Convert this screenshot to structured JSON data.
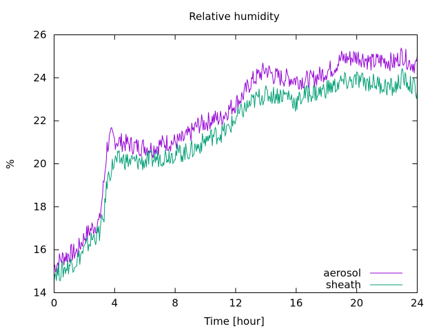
{
  "chart_data": {
    "type": "line",
    "title": "Relative humidity",
    "xlabel": "Time [hour]",
    "ylabel": "%",
    "xlim": [
      0,
      24
    ],
    "ylim": [
      14,
      26
    ],
    "xticks": [
      0,
      4,
      8,
      12,
      16,
      20,
      24
    ],
    "yticks": [
      14,
      16,
      18,
      20,
      22,
      24,
      26
    ],
    "grid": false,
    "legend_position": "bottom-right",
    "series": [
      {
        "name": "aerosol",
        "color": "#9400d3",
        "x": [
          0,
          0.5,
          1,
          1.5,
          2,
          2.5,
          3,
          3.3,
          3.5,
          3.8,
          4,
          4.5,
          5,
          5.5,
          6,
          6.5,
          7,
          7.5,
          8,
          8.5,
          9,
          9.5,
          10,
          10.5,
          11,
          11.5,
          12,
          12.5,
          13,
          13.5,
          14,
          14.5,
          15,
          15.5,
          16,
          16.5,
          17,
          17.5,
          18,
          18.5,
          19,
          19.5,
          20,
          20.5,
          21,
          21.5,
          22,
          22.5,
          23,
          23.5,
          24
        ],
        "y": [
          15.2,
          15.6,
          15.8,
          15.9,
          16.6,
          17.0,
          17.3,
          19.2,
          20.8,
          21.3,
          21.1,
          21.0,
          20.9,
          20.8,
          20.8,
          20.7,
          20.9,
          21.0,
          21.0,
          21.1,
          21.4,
          21.8,
          21.9,
          22.1,
          22.1,
          22.5,
          22.8,
          23.2,
          23.8,
          24.1,
          24.4,
          24.1,
          24.0,
          24.0,
          23.9,
          23.9,
          23.9,
          24.1,
          24.3,
          24.5,
          24.9,
          24.9,
          25.0,
          24.9,
          24.7,
          24.8,
          24.8,
          24.7,
          25.1,
          24.7,
          24.6
        ]
      },
      {
        "name": "sheath",
        "color": "#009e73",
        "x": [
          0,
          0.5,
          1,
          1.5,
          2,
          2.5,
          3,
          3.3,
          3.5,
          3.8,
          4,
          4.5,
          5,
          5.5,
          6,
          6.5,
          7,
          7.5,
          8,
          8.5,
          9,
          9.5,
          10,
          10.5,
          11,
          11.5,
          12,
          12.5,
          13,
          13.5,
          14,
          14.5,
          15,
          15.5,
          16,
          16.5,
          17,
          17.5,
          18,
          18.5,
          19,
          19.5,
          20,
          20.5,
          21,
          21.5,
          22,
          22.5,
          23,
          23.5,
          24
        ],
        "y": [
          14.9,
          15.0,
          15.3,
          15.5,
          16.0,
          16.5,
          16.8,
          17.6,
          19.2,
          19.8,
          20.1,
          20.2,
          20.1,
          20.1,
          20.1,
          20.2,
          20.3,
          20.4,
          20.5,
          20.5,
          20.6,
          20.8,
          21.1,
          21.3,
          21.4,
          21.6,
          22.1,
          22.5,
          22.8,
          23.1,
          23.2,
          23.2,
          23.2,
          23.2,
          22.8,
          23.2,
          23.3,
          23.3,
          23.5,
          23.6,
          23.8,
          23.8,
          23.9,
          23.8,
          23.8,
          23.7,
          23.6,
          23.5,
          24.0,
          23.7,
          23.4
        ]
      }
    ]
  }
}
